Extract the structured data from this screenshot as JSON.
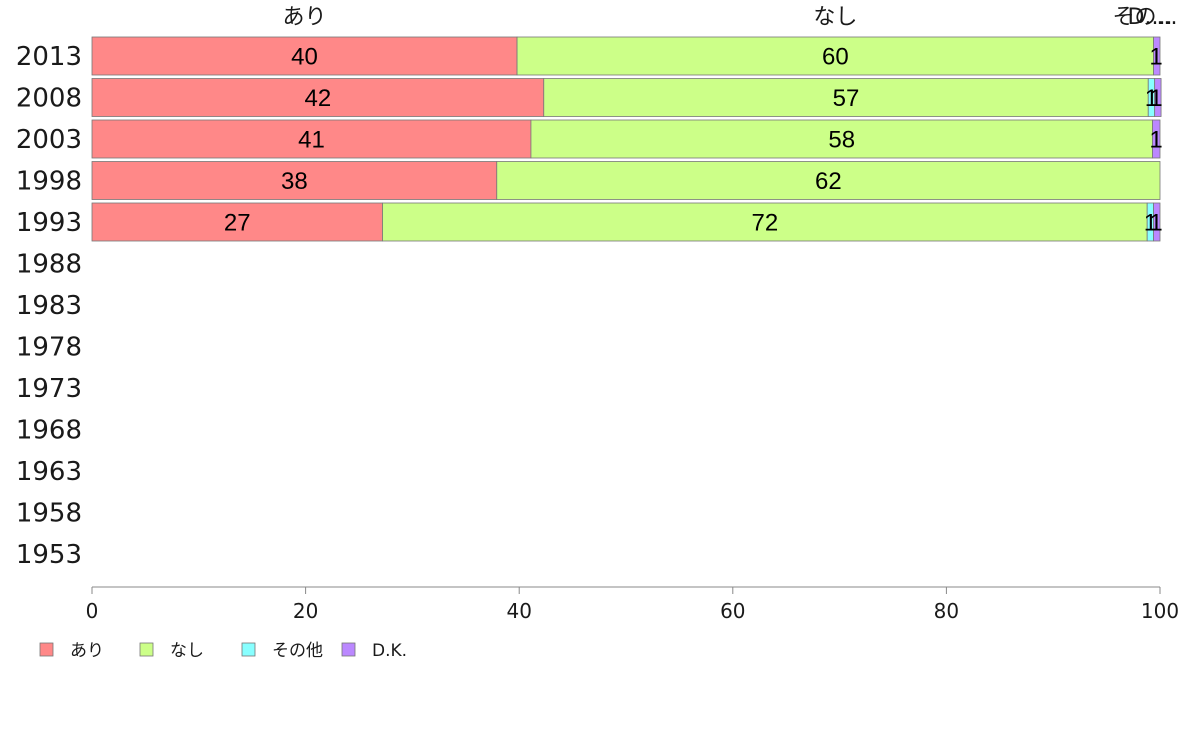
{
  "chart_data": {
    "type": "bar",
    "orientation": "horizontal",
    "stacked": true,
    "categories": [
      "2013",
      "2008",
      "2003",
      "1998",
      "1993",
      "1988",
      "1983",
      "1978",
      "1973",
      "1968",
      "1963",
      "1958",
      "1953"
    ],
    "series": [
      {
        "name": "あり",
        "color": "#ff8888",
        "values": [
          39.8,
          42.3,
          41.1,
          37.9,
          27.2,
          null,
          null,
          null,
          null,
          null,
          null,
          null,
          null
        ]
      },
      {
        "name": "なし",
        "color": "#ccff88",
        "values": [
          59.6,
          56.6,
          58.2,
          62.1,
          71.6,
          null,
          null,
          null,
          null,
          null,
          null,
          null,
          null
        ]
      },
      {
        "name": "その他",
        "color": "#88ffff",
        "values": [
          0,
          0.6,
          0,
          0,
          0.6,
          null,
          null,
          null,
          null,
          null,
          null,
          null,
          null
        ]
      },
      {
        "name": "D.K.",
        "color": "#bb88ff",
        "values": [
          0.6,
          0.6,
          0.7,
          0,
          0.6,
          null,
          null,
          null,
          null,
          null,
          null,
          null,
          null
        ]
      }
    ],
    "data_labels": [
      [
        "40",
        "60",
        "",
        "1"
      ],
      [
        "42",
        "57",
        "1",
        "1"
      ],
      [
        "41",
        "58",
        "",
        "1"
      ],
      [
        "38",
        "62",
        "",
        ""
      ],
      [
        "27",
        "72",
        "1",
        "1"
      ]
    ],
    "top_labels": [
      "あり",
      "なし",
      "その...",
      "D...."
    ],
    "x_ticks": [
      "0",
      "20",
      "40",
      "60",
      "80",
      "100"
    ],
    "xlim": [
      0,
      100
    ],
    "grid": false,
    "legend_position": "bottom-left",
    "title": "",
    "xlabel": "",
    "ylabel": ""
  }
}
